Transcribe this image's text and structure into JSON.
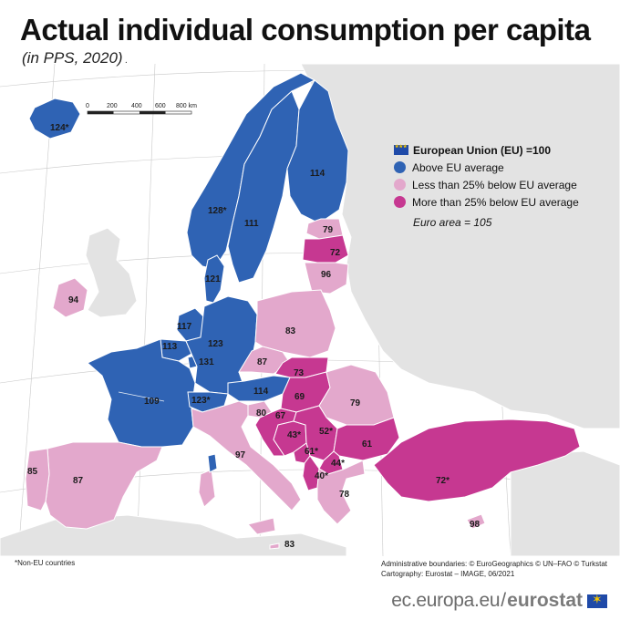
{
  "header": {
    "title": "Actual individual consumption per capita",
    "subtitle": "(in PPS, 2020)"
  },
  "legend": {
    "eu": "European Union (EU) =100",
    "above": "Above EU average",
    "less25": "Less than 25% below EU average",
    "more25": "More than 25% below EU average",
    "euro_area": "Euro area = 105"
  },
  "colors": {
    "above": "#2f63b4",
    "less25": "#e3a8cc",
    "more25": "#c63891",
    "nodata": "#e3e3e3",
    "sea": "#ffffff"
  },
  "scale": {
    "labels": [
      "0",
      "200",
      "400",
      "600",
      "800 km"
    ]
  },
  "countries": [
    {
      "id": "IS",
      "value": "124*",
      "category": "above"
    },
    {
      "id": "NO",
      "value": "128*",
      "category": "above"
    },
    {
      "id": "SE",
      "value": "111",
      "category": "above"
    },
    {
      "id": "FI",
      "value": "114",
      "category": "above"
    },
    {
      "id": "EE",
      "value": "79",
      "category": "less25"
    },
    {
      "id": "LV",
      "value": "72",
      "category": "more25"
    },
    {
      "id": "LT",
      "value": "96",
      "category": "less25"
    },
    {
      "id": "DK",
      "value": "121",
      "category": "above"
    },
    {
      "id": "IE",
      "value": "94",
      "category": "less25"
    },
    {
      "id": "NL",
      "value": "117",
      "category": "above"
    },
    {
      "id": "BE",
      "value": "113",
      "category": "above"
    },
    {
      "id": "LU",
      "value": "131",
      "category": "above"
    },
    {
      "id": "DE",
      "value": "123",
      "category": "above"
    },
    {
      "id": "PL",
      "value": "83",
      "category": "less25"
    },
    {
      "id": "CZ",
      "value": "87",
      "category": "less25"
    },
    {
      "id": "SK",
      "value": "73",
      "category": "more25"
    },
    {
      "id": "AT",
      "value": "114",
      "category": "above"
    },
    {
      "id": "HU",
      "value": "69",
      "category": "more25"
    },
    {
      "id": "RO",
      "value": "79",
      "category": "less25"
    },
    {
      "id": "FR",
      "value": "109",
      "category": "above"
    },
    {
      "id": "CH",
      "value": "123*",
      "category": "above"
    },
    {
      "id": "SI",
      "value": "80",
      "category": "less25"
    },
    {
      "id": "HR",
      "value": "67",
      "category": "more25"
    },
    {
      "id": "BA",
      "value": "43*",
      "category": "more25"
    },
    {
      "id": "RS",
      "value": "52*",
      "category": "more25"
    },
    {
      "id": "BG",
      "value": "61",
      "category": "more25"
    },
    {
      "id": "ME",
      "value": "61*",
      "category": "more25"
    },
    {
      "id": "MK",
      "value": "44*",
      "category": "more25"
    },
    {
      "id": "AL",
      "value": "40*",
      "category": "more25"
    },
    {
      "id": "GR",
      "value": "78",
      "category": "less25"
    },
    {
      "id": "TR",
      "value": "72*",
      "category": "more25"
    },
    {
      "id": "CY",
      "value": "98",
      "category": "less25"
    },
    {
      "id": "IT",
      "value": "97",
      "category": "less25"
    },
    {
      "id": "MT",
      "value": "83",
      "category": "less25"
    },
    {
      "id": "ES",
      "value": "87",
      "category": "less25"
    },
    {
      "id": "PT",
      "value": "85",
      "category": "less25"
    }
  ],
  "footer": {
    "footnote": "*Non-EU countries",
    "credits_line1": "Administrative boundaries: © EuroGeographics © UN–FAO © Turkstat",
    "credits_line2": "Cartography: Eurostat – IMAGE, 06/2021",
    "site": "ec.europa.eu",
    "slash": "/",
    "brand": "eurostat"
  }
}
